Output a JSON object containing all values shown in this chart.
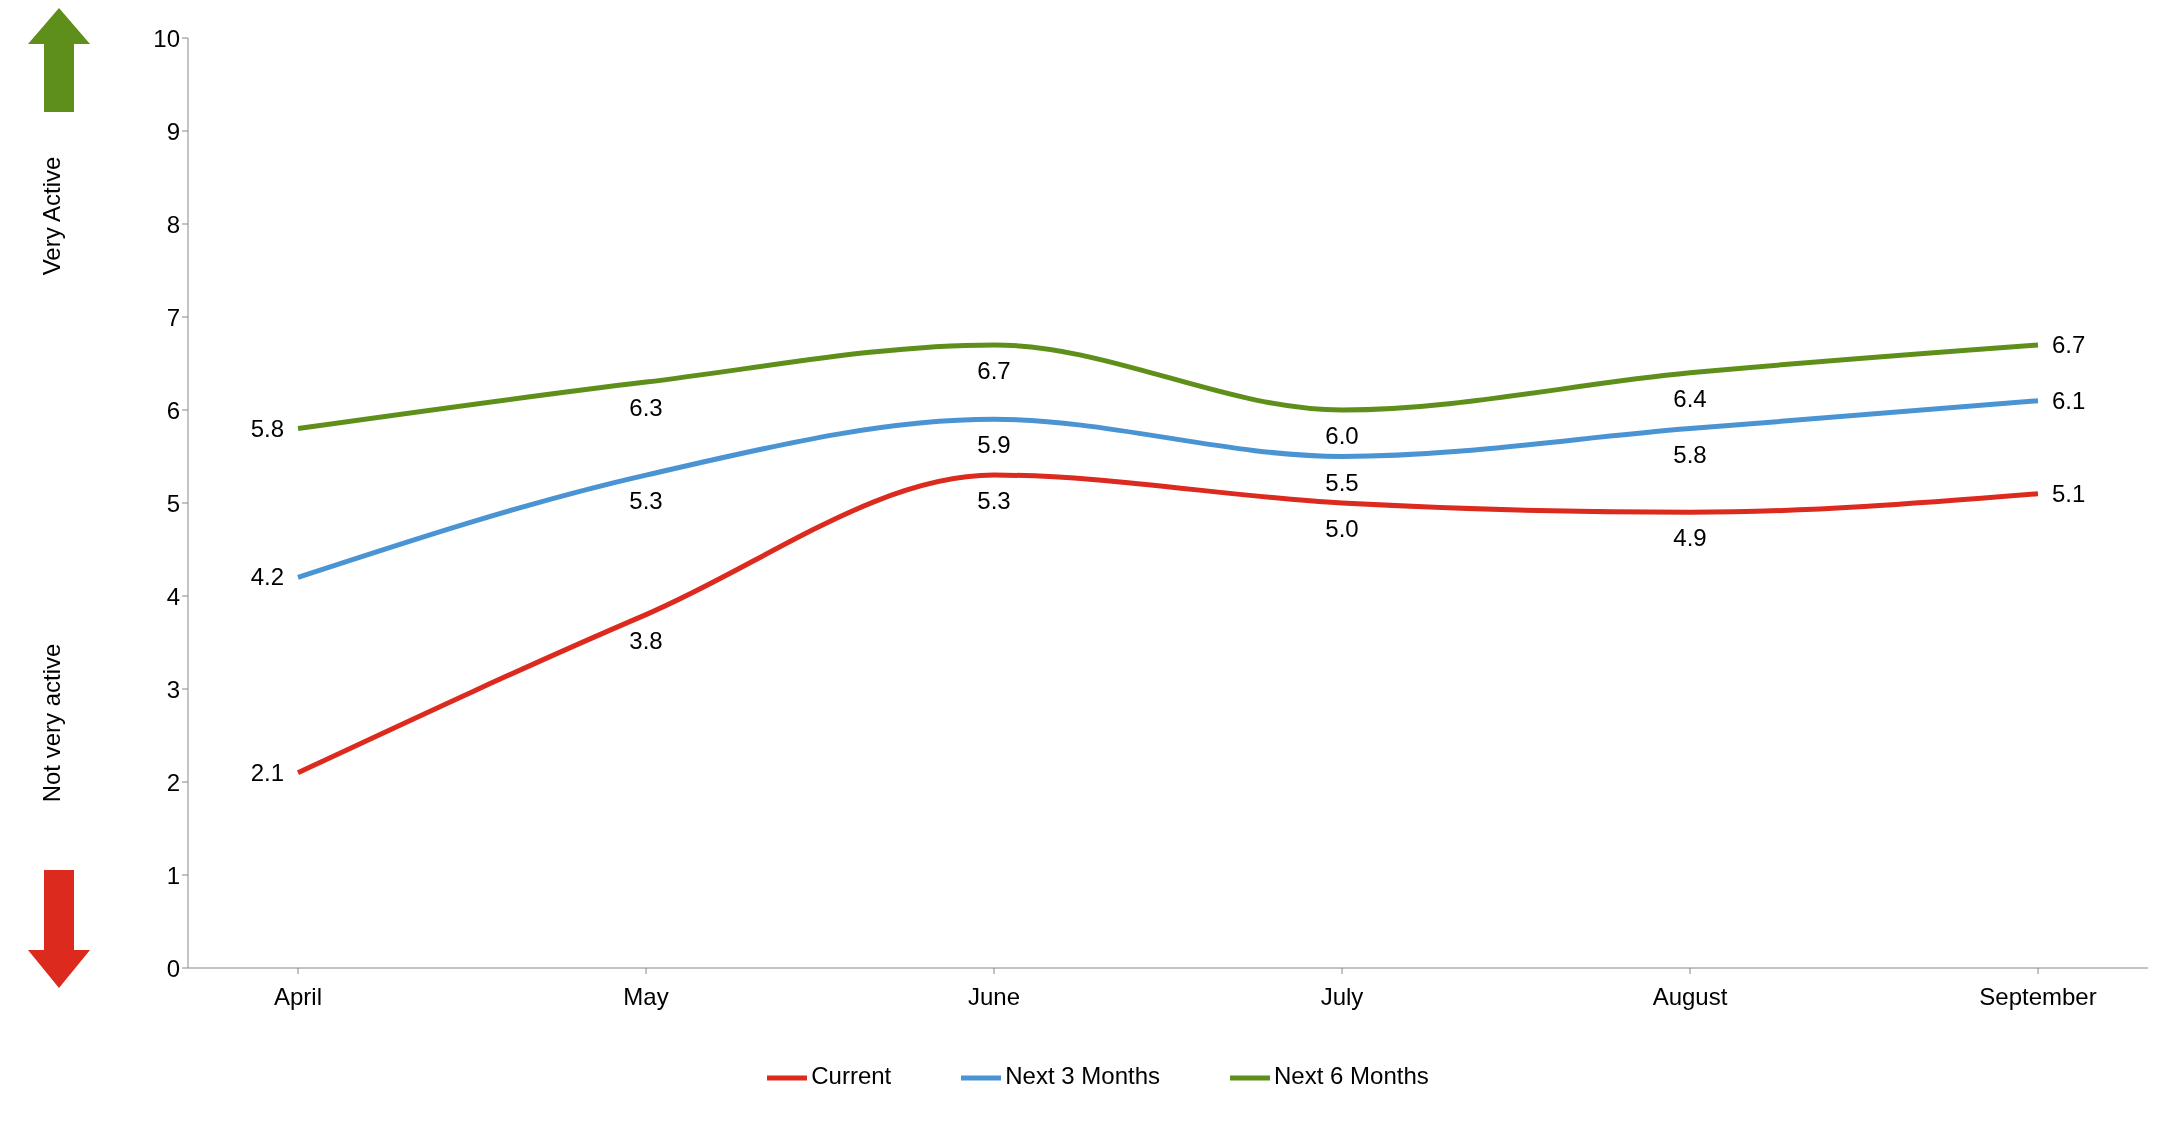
{
  "chart_data": {
    "type": "line",
    "categories": [
      "April",
      "May",
      "June",
      "July",
      "August",
      "September"
    ],
    "series": [
      {
        "name": "Current",
        "color": "#dc2a1f",
        "values": [
          2.1,
          3.8,
          5.3,
          5.0,
          4.9,
          5.1
        ],
        "value_labels": [
          "2.1",
          "3.8",
          "5.3",
          "5.0",
          "4.9",
          "5.1"
        ]
      },
      {
        "name": "Next 3 Months",
        "color": "#4a94d4",
        "values": [
          4.2,
          5.3,
          5.9,
          5.5,
          5.8,
          6.1
        ],
        "value_labels": [
          "4.2",
          "5.3",
          "5.9",
          "5.5",
          "5.8",
          "6.1"
        ]
      },
      {
        "name": "Next 6 Months",
        "color": "#5f8f1b",
        "values": [
          5.8,
          6.3,
          6.7,
          6.0,
          6.4,
          6.7
        ],
        "value_labels": [
          "5.8",
          "6.3",
          "6.7",
          "6.0",
          "6.4",
          "6.7"
        ]
      }
    ],
    "ylim": [
      0,
      10
    ],
    "yticks": [
      0,
      1,
      2,
      3,
      4,
      5,
      6,
      7,
      8,
      9,
      10
    ],
    "grid": false,
    "legend": "bottom",
    "marker": "none",
    "line_style": "solid",
    "annotations": [
      "Very Active",
      "Not very active"
    ]
  }
}
